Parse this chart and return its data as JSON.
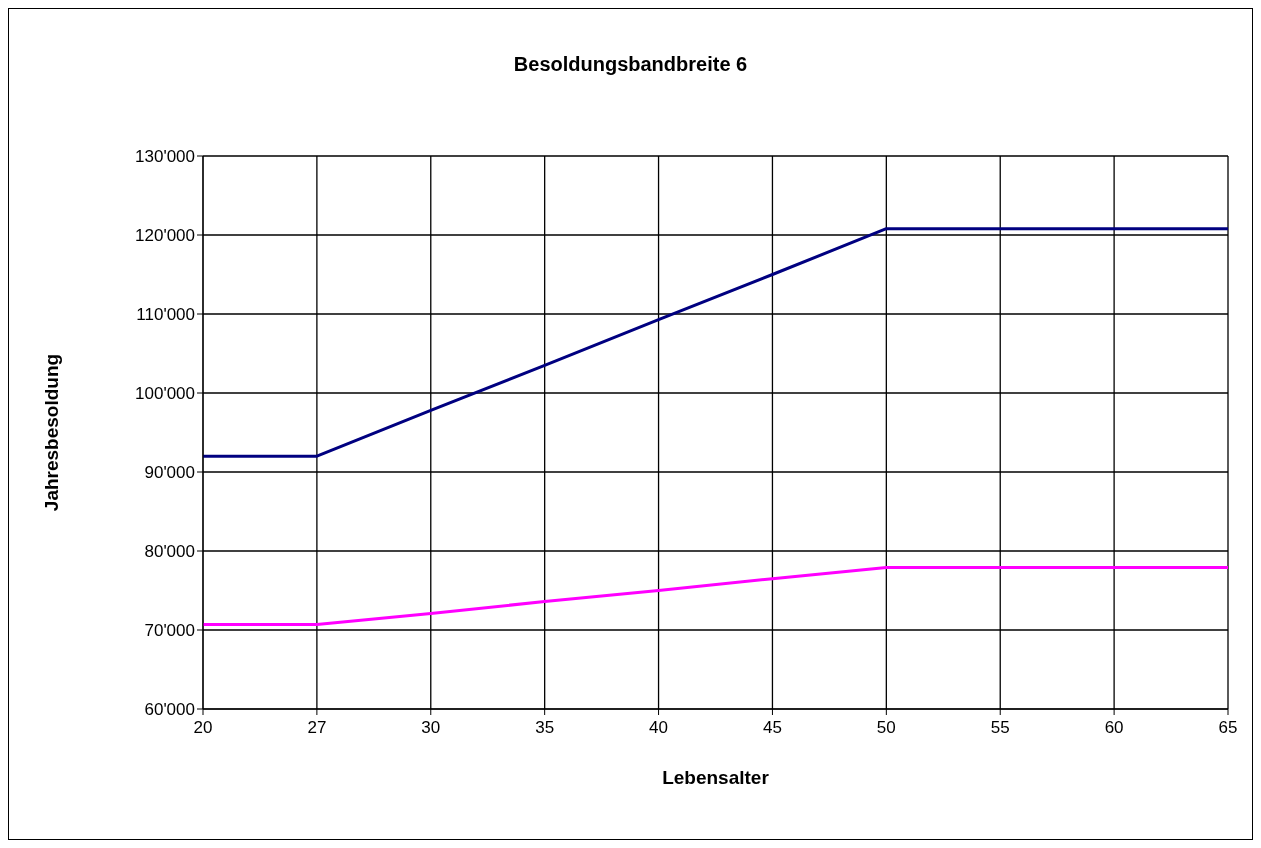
{
  "chart_data": {
    "type": "line",
    "title": "Besoldungsbandbreite 6",
    "xlabel": "Lebensalter",
    "ylabel": "Jahresbesoldung",
    "categories": [
      "20",
      "27",
      "30",
      "35",
      "40",
      "45",
      "50",
      "55",
      "60",
      "65"
    ],
    "series": [
      {
        "color": "#000080",
        "values": [
          92000,
          92000,
          97800,
          103500,
          109300,
          115000,
          120800,
          120800,
          120800,
          120800
        ]
      },
      {
        "color": "#ff00ff",
        "values": [
          70700,
          70700,
          72100,
          73600,
          75000,
          76500,
          77900,
          77900,
          77900,
          77900
        ]
      }
    ],
    "ylim": [
      60000,
      130000
    ],
    "yticks": [
      {
        "value": 60000,
        "label": "60'000"
      },
      {
        "value": 70000,
        "label": "70'000"
      },
      {
        "value": 80000,
        "label": "80'000"
      },
      {
        "value": 90000,
        "label": "90'000"
      },
      {
        "value": 100000,
        "label": "100'000"
      },
      {
        "value": 110000,
        "label": "110'000"
      },
      {
        "value": 120000,
        "label": "120'000"
      },
      {
        "value": 130000,
        "label": "130'000"
      }
    ],
    "grid": true,
    "legend": false,
    "marker": "none",
    "line_style": "solid"
  }
}
